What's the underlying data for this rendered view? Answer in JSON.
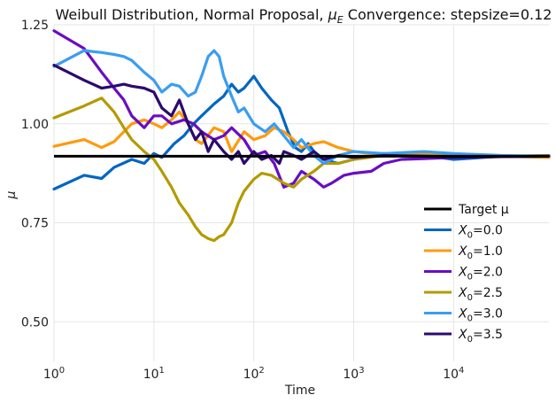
{
  "chart_data": {
    "type": "line",
    "title_main": "Weibull Distribution, Normal Proposal, ",
    "title_mu": "μ",
    "title_sub": "E",
    "title_tail": " Convergence: stepsize=0.12",
    "xlabel": "Time",
    "ylabel": "μ",
    "x_scale": "log",
    "xlim": [
      1,
      90000
    ],
    "ylim": [
      0.4,
      1.25
    ],
    "x_ticks": [
      {
        "value": 1,
        "base": "10",
        "exp": "0"
      },
      {
        "value": 10,
        "base": "10",
        "exp": "1"
      },
      {
        "value": 100,
        "base": "10",
        "exp": "2"
      },
      {
        "value": 1000,
        "base": "10",
        "exp": "3"
      },
      {
        "value": 10000,
        "base": "10",
        "exp": "4"
      }
    ],
    "y_ticks": [
      {
        "value": 0.5,
        "label": "0.50"
      },
      {
        "value": 0.75,
        "label": "0.75"
      },
      {
        "value": 1.0,
        "label": "1.00"
      },
      {
        "value": 1.25,
        "label": "1.25"
      }
    ],
    "grid": true,
    "legend_position": "bottom-right",
    "target": {
      "name": "Target μ",
      "value": 0.918,
      "color": "#000000"
    },
    "series": [
      {
        "name_base": "X",
        "name_sub": "0",
        "name_tail": "=0.0",
        "color": "#0066c2",
        "x": [
          1,
          2,
          3,
          4,
          6,
          8,
          10,
          12,
          16,
          20,
          25,
          30,
          40,
          50,
          60,
          70,
          80,
          100,
          120,
          150,
          180,
          220,
          260,
          300,
          350,
          400,
          500,
          700,
          1000,
          2000,
          5000,
          10000,
          30000,
          90000
        ],
        "y": [
          0.835,
          0.87,
          0.862,
          0.89,
          0.91,
          0.9,
          0.925,
          0.915,
          0.95,
          0.97,
          1.0,
          1.02,
          1.05,
          1.07,
          1.1,
          1.08,
          1.09,
          1.12,
          1.09,
          1.06,
          1.04,
          0.98,
          0.94,
          0.93,
          0.95,
          0.93,
          0.91,
          0.9,
          0.91,
          0.925,
          0.92,
          0.91,
          0.918,
          0.918
        ]
      },
      {
        "name_base": "X",
        "name_sub": "0",
        "name_tail": "=1.0",
        "color": "#ff9a0e",
        "x": [
          1,
          2,
          3,
          4,
          6,
          8,
          10,
          12,
          15,
          18,
          22,
          26,
          30,
          40,
          50,
          60,
          80,
          100,
          130,
          160,
          200,
          250,
          300,
          400,
          500,
          700,
          1000,
          2000,
          5000,
          10000,
          30000,
          90000
        ],
        "y": [
          0.943,
          0.96,
          0.94,
          0.955,
          1.0,
          1.01,
          1.0,
          0.99,
          1.01,
          1.03,
          1.0,
          0.96,
          0.95,
          0.99,
          0.98,
          0.93,
          0.98,
          0.96,
          0.97,
          0.99,
          0.98,
          0.96,
          0.94,
          0.95,
          0.955,
          0.94,
          0.93,
          0.92,
          0.925,
          0.92,
          0.918,
          0.915
        ]
      },
      {
        "name_base": "X",
        "name_sub": "0",
        "name_tail": "=2.0",
        "color": "#6a0dc2",
        "x": [
          1,
          2,
          3,
          4,
          5,
          6,
          8,
          10,
          12,
          15,
          20,
          25,
          30,
          40,
          50,
          60,
          80,
          100,
          130,
          160,
          200,
          250,
          300,
          400,
          500,
          600,
          800,
          1000,
          1500,
          2000,
          3000,
          5000,
          10000,
          30000,
          90000
        ],
        "y": [
          1.235,
          1.19,
          1.13,
          1.09,
          1.06,
          1.02,
          0.99,
          1.02,
          1.02,
          1.0,
          1.01,
          1.0,
          0.98,
          0.96,
          0.97,
          0.99,
          0.96,
          0.92,
          0.93,
          0.9,
          0.84,
          0.85,
          0.88,
          0.86,
          0.84,
          0.85,
          0.87,
          0.875,
          0.88,
          0.9,
          0.91,
          0.912,
          0.915,
          0.917,
          0.918
        ]
      },
      {
        "name_base": "X",
        "name_sub": "0",
        "name_tail": "=2.5",
        "color": "#b39a00",
        "x": [
          1,
          2,
          3,
          4,
          5,
          6,
          8,
          10,
          12,
          15,
          18,
          22,
          26,
          30,
          35,
          40,
          45,
          50,
          60,
          70,
          80,
          100,
          120,
          150,
          200,
          250,
          300,
          400,
          500,
          700,
          1000,
          2000,
          5000,
          10000,
          30000,
          90000
        ],
        "y": [
          1.015,
          1.045,
          1.065,
          1.03,
          0.99,
          0.96,
          0.93,
          0.91,
          0.88,
          0.84,
          0.8,
          0.77,
          0.74,
          0.72,
          0.71,
          0.705,
          0.715,
          0.72,
          0.75,
          0.8,
          0.83,
          0.86,
          0.875,
          0.87,
          0.85,
          0.84,
          0.86,
          0.88,
          0.9,
          0.9,
          0.91,
          0.92,
          0.92,
          0.918,
          0.918,
          0.92
        ]
      },
      {
        "name_base": "X",
        "name_sub": "0",
        "name_tail": "=3.0",
        "color": "#3a9df2",
        "x": [
          1,
          2,
          3,
          4,
          5,
          6,
          8,
          10,
          12,
          15,
          18,
          22,
          26,
          30,
          35,
          40,
          45,
          50,
          60,
          70,
          80,
          100,
          130,
          160,
          200,
          250,
          300,
          400,
          500,
          700,
          1000,
          2000,
          5000,
          10000,
          30000,
          90000
        ],
        "y": [
          1.145,
          1.185,
          1.18,
          1.175,
          1.17,
          1.16,
          1.13,
          1.11,
          1.08,
          1.1,
          1.095,
          1.07,
          1.08,
          1.12,
          1.17,
          1.185,
          1.17,
          1.12,
          1.07,
          1.03,
          1.04,
          1.0,
          0.98,
          1.0,
          0.97,
          0.94,
          0.96,
          0.92,
          0.9,
          0.92,
          0.93,
          0.925,
          0.93,
          0.925,
          0.92,
          0.918
        ]
      },
      {
        "name_base": "X",
        "name_sub": "0",
        "name_tail": "=3.5",
        "color": "#2b0a6e",
        "x": [
          1,
          2,
          3,
          4,
          5,
          6,
          8,
          10,
          12,
          15,
          18,
          22,
          26,
          30,
          35,
          40,
          50,
          60,
          70,
          80,
          100,
          120,
          150,
          180,
          200,
          250,
          300,
          400,
          500,
          700,
          1000,
          2000,
          5000,
          10000,
          30000,
          90000
        ],
        "y": [
          1.148,
          1.11,
          1.09,
          1.095,
          1.1,
          1.095,
          1.09,
          1.08,
          1.04,
          1.02,
          1.06,
          1.0,
          0.96,
          0.98,
          0.93,
          0.96,
          0.93,
          0.91,
          0.93,
          0.9,
          0.93,
          0.91,
          0.92,
          0.9,
          0.93,
          0.92,
          0.91,
          0.93,
          0.91,
          0.92,
          0.915,
          0.92,
          0.918,
          0.915,
          0.917,
          0.918
        ]
      }
    ]
  }
}
